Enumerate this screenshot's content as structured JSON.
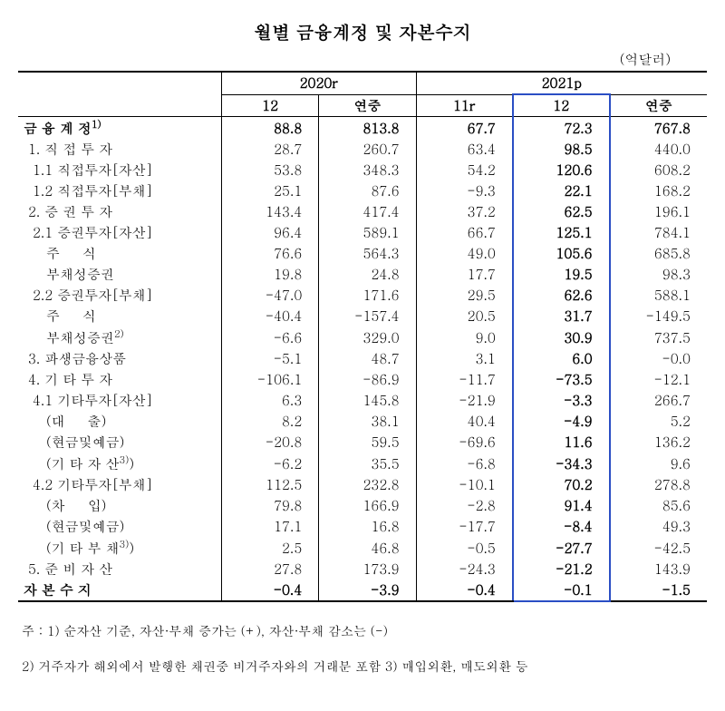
{
  "title": "월별 금융계정 및 자본수지",
  "unit": "(억달러)",
  "year_headers": {
    "y2020": "2020r",
    "y2021": "2021p"
  },
  "sub_headers": {
    "m12a": "12",
    "annual_a": "연중",
    "m11": "11r",
    "m12b": "12",
    "annual_b": "연중"
  },
  "rows": [
    {
      "label": "금 융 계 정",
      "sup": "1)",
      "cls": "bold-row",
      "v": [
        "88.8",
        "813.8",
        "67.7",
        "72.3",
        "767.8"
      ]
    },
    {
      "label": " 1. 직 접 투 자",
      "cls": "",
      "v": [
        "28.7",
        "260.7",
        "63.4",
        "98.5",
        "440.0"
      ]
    },
    {
      "label": "  1.1 직접투자[자산]",
      "cls": "",
      "v": [
        "53.8",
        "348.3",
        "54.2",
        "120.6",
        "608.2"
      ]
    },
    {
      "label": "  1.2 직접투자[부채]",
      "cls": "",
      "v": [
        "25.1",
        "87.6",
        "-9.3",
        "22.1",
        "168.2"
      ]
    },
    {
      "label": " 2. 증 권 투 자",
      "cls": "",
      "v": [
        "143.4",
        "417.4",
        "37.2",
        "62.5",
        "196.1"
      ]
    },
    {
      "label": "  2.1 증권투자[자산]",
      "cls": "",
      "v": [
        "96.4",
        "589.1",
        "66.7",
        "125.1",
        "784.1"
      ]
    },
    {
      "label": "     주     식",
      "cls": "",
      "v": [
        "76.6",
        "564.3",
        "49.0",
        "105.6",
        "685.8"
      ]
    },
    {
      "label": "     부채성증권",
      "cls": "",
      "v": [
        "19.8",
        "24.8",
        "17.7",
        "19.5",
        "98.3"
      ]
    },
    {
      "label": "  2.2 증권투자[부채]",
      "cls": "",
      "v": [
        "-47.0",
        "171.6",
        "29.5",
        "62.6",
        "588.1"
      ]
    },
    {
      "label": "     주     식",
      "cls": "",
      "v": [
        "-40.4",
        "-157.4",
        "20.5",
        "31.7",
        "-149.5"
      ]
    },
    {
      "label": "     부채성증권",
      "sup": "2)",
      "cls": "",
      "v": [
        "-6.6",
        "329.0",
        "9.0",
        "30.9",
        "737.5"
      ]
    },
    {
      "label": " 3. 파생금융상품",
      "cls": "",
      "v": [
        "-5.1",
        "48.7",
        "3.1",
        "6.0",
        "-0.0"
      ]
    },
    {
      "label": " 4. 기 타 투 자",
      "cls": "",
      "v": [
        "-106.1",
        "-86.9",
        "-11.7",
        "-73.5",
        "-12.1"
      ]
    },
    {
      "label": "  4.1 기타투자[자산]",
      "cls": "",
      "v": [
        "6.3",
        "145.8",
        "-21.9",
        "-3.3",
        "266.7"
      ]
    },
    {
      "label": "     (대     출)",
      "cls": "",
      "v": [
        "8.2",
        "38.1",
        "40.4",
        "-4.9",
        "5.2"
      ]
    },
    {
      "label": "     (현금및예금)",
      "cls": "",
      "v": [
        "-20.8",
        "59.5",
        "-69.6",
        "11.6",
        "136.2"
      ]
    },
    {
      "label": "     (기 타 자 산",
      "sup": "3)",
      "after": ")",
      "cls": "",
      "v": [
        "-6.2",
        "35.5",
        "-6.8",
        "-34.3",
        "9.6"
      ]
    },
    {
      "label": "  4.2 기타투자[부채]",
      "cls": "",
      "v": [
        "112.5",
        "232.8",
        "-10.1",
        "70.2",
        "278.8"
      ]
    },
    {
      "label": "     (차     입)",
      "cls": "",
      "v": [
        "79.8",
        "166.9",
        "-2.8",
        "91.4",
        "85.6"
      ]
    },
    {
      "label": "     (현금및예금)",
      "cls": "",
      "v": [
        "17.1",
        "16.8",
        "-17.7",
        "-8.4",
        "49.3"
      ]
    },
    {
      "label": "     (기 타 부 채",
      "sup": "3)",
      "after": ")",
      "cls": "",
      "v": [
        "2.5",
        "46.8",
        "-0.5",
        "-27.7",
        "-42.5"
      ]
    },
    {
      "label": " 5. 준 비 자 산",
      "cls": "",
      "v": [
        "27.8",
        "173.9",
        "-24.3",
        "-21.2",
        "143.9"
      ]
    },
    {
      "label": "자 본 수 지",
      "cls": "bold-row",
      "v": [
        "-0.4",
        "-3.9",
        "-0.4",
        "-0.1",
        "-1.5"
      ]
    }
  ],
  "footnotes": {
    "f1": "주 : 1) 순자산 기준, 자산·부채 증가는 (+), 자산·부채 감소는 (-)",
    "f2": "     2) 거주자가 해외에서 발행한 채권중 비거주자와의 거래분 포함  3) 매입외환, 매도외환 등"
  },
  "colors": {
    "highlight_border": "#2a4ec4",
    "text": "#000000",
    "bg": "#ffffff"
  },
  "col_widths": [
    "230",
    "110",
    "110",
    "110",
    "110",
    "110"
  ]
}
